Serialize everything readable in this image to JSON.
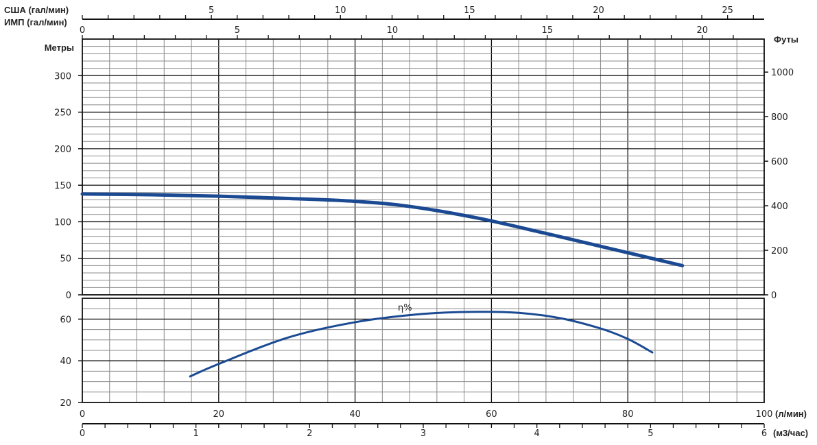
{
  "chart_data": [
    {
      "type": "line",
      "title": "",
      "xlabel": "(л/мин)",
      "ylabel": "Метры",
      "y2label": "Футы",
      "x_top_labels": [
        "США (гал/мин)",
        "ИМП (гал/мин)"
      ],
      "x2label": "(м3/час)",
      "xlim": [
        0,
        100
      ],
      "ylim": [
        0,
        350
      ],
      "grid": true,
      "x_ticks": [
        0,
        20,
        40,
        60,
        80,
        100
      ],
      "y_ticks": [
        0,
        50,
        100,
        150,
        200,
        250,
        300
      ],
      "y2_ticks": [
        0,
        200,
        400,
        600,
        800,
        1000
      ],
      "usa_ticks": [
        5,
        10,
        15,
        20,
        25
      ],
      "imp_ticks": [
        0,
        5,
        10,
        15,
        20
      ],
      "m3h_ticks": [
        0,
        1,
        2,
        3,
        4,
        5,
        6
      ],
      "series": [
        {
          "x": [
            0,
            10,
            20,
            30,
            40,
            48,
            58,
            68,
            78,
            88
          ],
          "values": [
            138,
            137,
            135,
            132,
            128,
            121,
            105,
            84,
            62,
            40
          ]
        }
      ],
      "line_color": "#1b4a93"
    },
    {
      "type": "line",
      "ylim": [
        20,
        70
      ],
      "xlim": [
        0,
        100
      ],
      "y_ticks": [
        20,
        40,
        60
      ],
      "annotation": "η%",
      "series": [
        {
          "x": [
            15.8,
            20,
            30,
            40,
            50,
            58,
            64,
            70,
            76,
            80,
            83.6
          ],
          "values": [
            32.5,
            38.5,
            51,
            58.5,
            62.5,
            63.5,
            63,
            60.5,
            55.5,
            50.5,
            44
          ]
        }
      ],
      "line_color": "#1b4a93"
    }
  ]
}
